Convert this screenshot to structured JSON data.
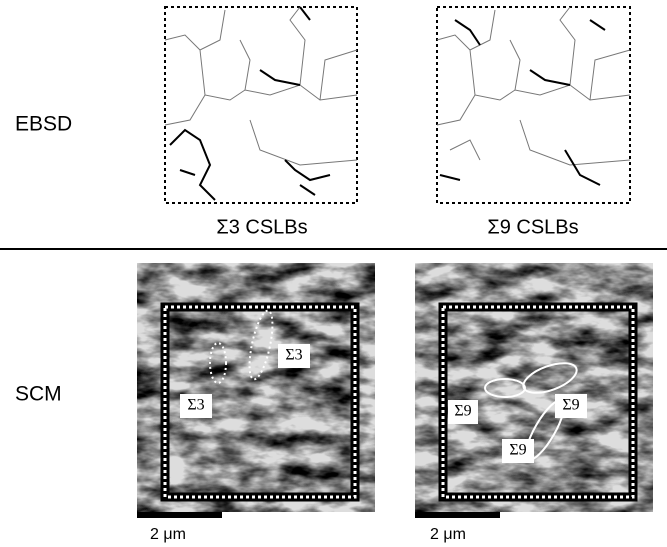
{
  "row_labels": [
    "EBSD",
    "SCM"
  ],
  "ebsd_panels": [
    {
      "caption": "Σ3 CSLBs"
    },
    {
      "caption": "Σ9 CSLBs"
    }
  ],
  "scm_panels": [
    {
      "annotations": [
        "Σ3",
        "Σ3"
      ],
      "scale_bar": "2 μm"
    },
    {
      "annotations": [
        "Σ9",
        "Σ9",
        "Σ9"
      ],
      "scale_bar": "2 μm"
    }
  ]
}
